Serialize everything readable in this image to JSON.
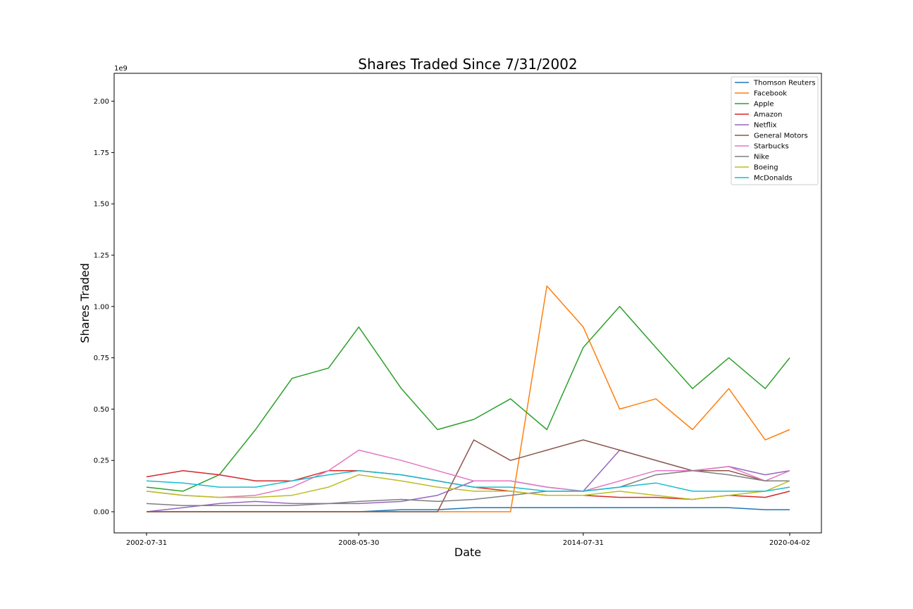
{
  "chart_data": {
    "type": "line",
    "title": "Shares Traded Since 7/31/2002",
    "xlabel": "Date",
    "ylabel": "Shares Traded",
    "y_offset_label": "1e9",
    "x_tick_labels": [
      "2002-07-31",
      "2008-05-30",
      "2014-07-31",
      "2020-04-02"
    ],
    "y_tick_labels": [
      "0.00",
      "0.25",
      "0.50",
      "0.75",
      "1.00",
      "1.25",
      "1.50",
      "1.75",
      "2.00"
    ],
    "xlim": [
      "2002-07-31",
      "2020-04-02"
    ],
    "ylim": [
      0,
      2.1
    ],
    "y_unit_multiplier": 1000000000,
    "legend_position": "upper right",
    "grid": false,
    "x": [
      "2002-07-31",
      "2003-07-31",
      "2004-07-30",
      "2005-07-29",
      "2006-07-31",
      "2007-07-31",
      "2008-05-30",
      "2009-07-31",
      "2010-07-30",
      "2011-07-29",
      "2012-07-31",
      "2013-07-31",
      "2014-07-31",
      "2015-07-31",
      "2016-07-29",
      "2017-07-31",
      "2018-07-31",
      "2019-07-31",
      "2020-04-02"
    ],
    "series": [
      {
        "name": "Thomson Reuters",
        "color": "#1f77b4",
        "values": [
          0.0,
          0.0,
          0.0,
          0.0,
          0.0,
          0.0,
          0.0,
          0.01,
          0.01,
          0.02,
          0.02,
          0.02,
          0.02,
          0.02,
          0.02,
          0.02,
          0.02,
          0.01,
          0.01
        ]
      },
      {
        "name": "Facebook",
        "color": "#ff7f0e",
        "values": [
          0.0,
          0.0,
          0.0,
          0.0,
          0.0,
          0.0,
          0.0,
          0.0,
          0.0,
          0.0,
          0.0,
          1.1,
          0.9,
          0.5,
          0.55,
          0.4,
          0.6,
          0.35,
          0.4
        ]
      },
      {
        "name": "Apple",
        "color": "#2ca02c",
        "values": [
          0.12,
          0.1,
          0.18,
          0.4,
          0.65,
          0.7,
          0.9,
          0.6,
          0.4,
          0.45,
          0.55,
          0.4,
          0.8,
          1.0,
          0.8,
          0.6,
          0.75,
          0.6,
          0.75
        ]
      },
      {
        "name": "Amazon",
        "color": "#d62728",
        "values": [
          0.17,
          0.2,
          0.18,
          0.15,
          0.15,
          0.2,
          0.2,
          0.18,
          0.15,
          0.12,
          0.1,
          0.08,
          0.08,
          0.07,
          0.07,
          0.06,
          0.08,
          0.07,
          0.1
        ]
      },
      {
        "name": "Netflix",
        "color": "#9467bd",
        "values": [
          0.0,
          0.02,
          0.04,
          0.05,
          0.04,
          0.04,
          0.04,
          0.05,
          0.08,
          0.15,
          0.15,
          0.12,
          0.1,
          0.3,
          0.25,
          0.2,
          0.22,
          0.18,
          0.2
        ]
      },
      {
        "name": "General Motors",
        "color": "#8c564b",
        "values": [
          0.0,
          0.0,
          0.0,
          0.0,
          0.0,
          0.0,
          0.0,
          0.0,
          0.0,
          0.35,
          0.25,
          0.3,
          0.35,
          0.3,
          0.25,
          0.2,
          0.2,
          0.15,
          0.15
        ]
      },
      {
        "name": "Starbucks",
        "color": "#e377c2",
        "values": [
          0.1,
          0.08,
          0.07,
          0.08,
          0.12,
          0.2,
          0.3,
          0.25,
          0.2,
          0.15,
          0.15,
          0.12,
          0.1,
          0.15,
          0.2,
          0.2,
          0.22,
          0.15,
          0.2
        ]
      },
      {
        "name": "Nike",
        "color": "#7f7f7f",
        "values": [
          0.04,
          0.03,
          0.03,
          0.03,
          0.03,
          0.04,
          0.05,
          0.06,
          0.05,
          0.06,
          0.08,
          0.1,
          0.1,
          0.12,
          0.18,
          0.2,
          0.18,
          0.15,
          0.15
        ]
      },
      {
        "name": "Boeing",
        "color": "#bcbd22",
        "values": [
          0.1,
          0.08,
          0.07,
          0.07,
          0.08,
          0.12,
          0.18,
          0.15,
          0.12,
          0.1,
          0.1,
          0.08,
          0.08,
          0.1,
          0.08,
          0.06,
          0.08,
          0.1,
          0.15
        ]
      },
      {
        "name": "McDonalds",
        "color": "#17becf",
        "values": [
          0.15,
          0.14,
          0.12,
          0.12,
          0.15,
          0.18,
          0.2,
          0.18,
          0.15,
          0.12,
          0.12,
          0.1,
          0.1,
          0.12,
          0.14,
          0.1,
          0.1,
          0.1,
          0.12
        ]
      }
    ]
  }
}
